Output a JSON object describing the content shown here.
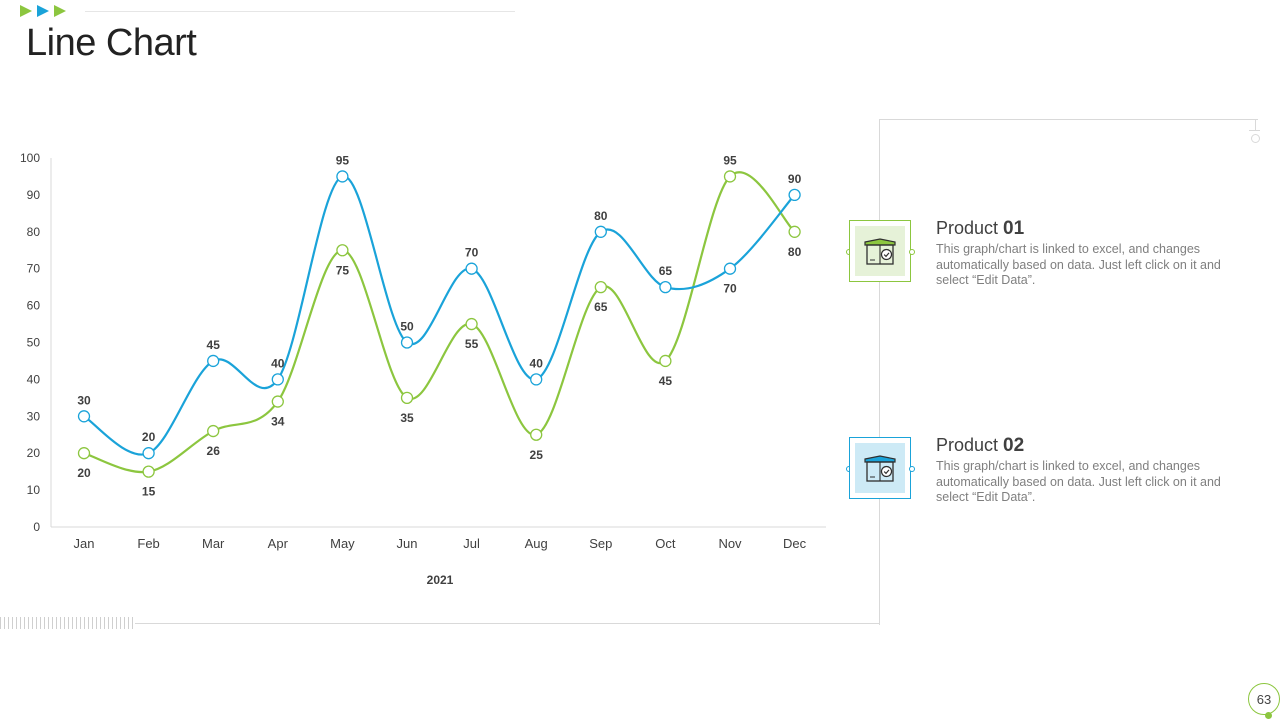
{
  "slide": {
    "title": "Line Chart",
    "page_number": "63",
    "accent_green": "#8cc63f",
    "accent_blue": "#1aa3d9"
  },
  "legend": [
    {
      "name": "Product ",
      "number": "01",
      "description": "This graph/chart is linked to excel, and changes automatically based on data. Just left click on it and select “Edit Data”.",
      "color": "#8cc63f",
      "icon": "box-check-icon"
    },
    {
      "name": "Product ",
      "number": "02",
      "description": "This graph/chart is linked to excel, and changes automatically based on data. Just left click on it and select “Edit Data”.",
      "color": "#1aa3d9",
      "icon": "box-check-icon"
    }
  ],
  "chart_data": {
    "type": "line",
    "categories": [
      "Jan",
      "Feb",
      "Mar",
      "Apr",
      "May",
      "Jun",
      "Jul",
      "Aug",
      "Sep",
      "Oct",
      "Nov",
      "Dec"
    ],
    "series": [
      {
        "color": "#1aa3d9",
        "values": [
          30,
          20,
          45,
          40,
          95,
          50,
          70,
          40,
          80,
          65,
          70,
          90
        ]
      },
      {
        "color": "#8cc63f",
        "values": [
          20,
          15,
          26,
          34,
          75,
          35,
          55,
          25,
          65,
          45,
          95,
          80
        ]
      }
    ],
    "xlabel": "2021",
    "ylabel": "",
    "ylim": [
      0,
      100
    ],
    "yticks": [
      0,
      10,
      20,
      30,
      40,
      50,
      60,
      70,
      80,
      90,
      100
    ],
    "grid": false,
    "smooth": true,
    "data_labels": true
  }
}
